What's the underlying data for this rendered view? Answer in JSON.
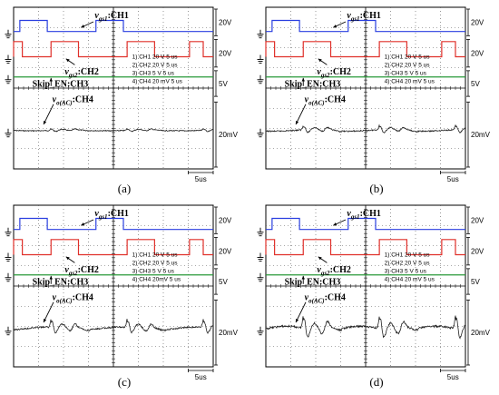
{
  "chart_data": [
    {
      "type": "line",
      "panel_label": "(a)",
      "labels": {
        "ch1": "v",
        "ch1_sub": "gs1",
        "ch1_tail": ":CH1",
        "ch2": "v",
        "ch2_sub": "gs2",
        "ch2_tail": ":CH2",
        "ch3": "Skip_EN:CH3",
        "ch4": "v",
        "ch4_sub": "o(AC)",
        "ch4_tail": ":CH4"
      },
      "scale_boxes": [
        "20V",
        "20V",
        "5V",
        "20mV",
        "5us"
      ],
      "settings": [
        "1) CH1  20  V    5 us",
        "2) CH2  20  V    5 us",
        "3) CH3  5  V    5 us",
        "4) CH4  20 mV   5 us"
      ],
      "series": [
        {
          "channel": "CH1",
          "color": "#2a3fe0",
          "volts_per_div": 20,
          "high": 0.55,
          "low": 0.0,
          "pulses": [
            [
              0.25,
              1.35
            ],
            [
              3.3,
              4.4
            ]
          ]
        },
        {
          "channel": "CH2",
          "color": "#e0302a",
          "volts_per_div": 20,
          "high": 0.75,
          "low": 0.0,
          "pulses": [
            [
              -0.2,
              0.35
            ],
            [
              1.5,
              2.6
            ],
            [
              4.55,
              5.65
            ],
            [
              7.05,
              7.6
            ]
          ]
        },
        {
          "channel": "CH3",
          "color": "#2a9a3a",
          "volts_per_div": 5,
          "level": 0.0
        },
        {
          "channel": "CH4",
          "color": "#222222",
          "volts_per_div_mV": 20,
          "ripple_amplitude_div": 0.12,
          "spike_period_div": 3.05
        }
      ]
    },
    {
      "type": "line",
      "panel_label": "(b)",
      "labels": {
        "ch1": "v",
        "ch1_sub": "gs1",
        "ch1_tail": ":CH1",
        "ch2": "v",
        "ch2_sub": "gs2",
        "ch2_tail": ":CH2",
        "ch3": "Skip_EN:CH3",
        "ch4": "v",
        "ch4_sub": "o(AC)",
        "ch4_tail": ":CH4"
      },
      "scale_boxes": [
        "20V",
        "20V",
        "5V",
        "20mV",
        "5us"
      ],
      "settings": [
        "1) CH1  20  V    5 us",
        "2) CH2  20  V    5 us",
        "3) CH3  5  V    5 us",
        "4) CH4  20 mV   5 us"
      ],
      "series": [
        {
          "channel": "CH1",
          "color": "#2a3fe0",
          "volts_per_div": 20,
          "high": 0.55,
          "low": 0.0,
          "pulses": [
            [
              0.25,
              1.35
            ],
            [
              3.3,
              4.4
            ]
          ]
        },
        {
          "channel": "CH2",
          "color": "#e0302a",
          "volts_per_div": 20,
          "high": 0.75,
          "low": 0.0,
          "pulses": [
            [
              -0.2,
              0.35
            ],
            [
              1.5,
              2.6
            ],
            [
              4.55,
              5.65
            ],
            [
              7.05,
              7.6
            ]
          ]
        },
        {
          "channel": "CH3",
          "color": "#2a9a3a",
          "volts_per_div": 5,
          "level": 0.0
        },
        {
          "channel": "CH4",
          "color": "#222222",
          "volts_per_div_mV": 20,
          "ripple_amplitude_div": 0.3,
          "spike_period_div": 3.05
        }
      ]
    },
    {
      "type": "line",
      "panel_label": "(c)",
      "labels": {
        "ch1": "v",
        "ch1_sub": "gs1",
        "ch1_tail": ":CH1",
        "ch2": "v",
        "ch2_sub": "gs2",
        "ch2_tail": ":CH2",
        "ch3": "Skip_EN:CH3",
        "ch4": "v",
        "ch4_sub": "o(AC)",
        "ch4_tail": ":CH4"
      },
      "scale_boxes": [
        "20V",
        "20V",
        "5V",
        "20mV",
        "5us"
      ],
      "settings": [
        "1) CH1  20  V    5 us",
        "2) CH2  20  V    5 us",
        "3) CH3  5  V    5 us",
        "4) CH4  20mV   5 us"
      ],
      "series": [
        {
          "channel": "CH1",
          "color": "#2a3fe0",
          "volts_per_div": 20,
          "high": 0.55,
          "low": 0.0,
          "pulses": [
            [
              0.25,
              1.35
            ],
            [
              3.3,
              4.4
            ]
          ]
        },
        {
          "channel": "CH2",
          "color": "#e0302a",
          "volts_per_div": 20,
          "high": 0.75,
          "low": 0.0,
          "pulses": [
            [
              -0.2,
              0.35
            ],
            [
              1.5,
              2.6
            ],
            [
              4.55,
              5.65
            ],
            [
              7.05,
              7.6
            ]
          ]
        },
        {
          "channel": "CH3",
          "color": "#2a9a3a",
          "volts_per_div": 5,
          "level": 0.0
        },
        {
          "channel": "CH4",
          "color": "#222222",
          "volts_per_div_mV": 20,
          "ripple_amplitude_div": 0.55,
          "spike_period_div": 3.05
        }
      ]
    },
    {
      "type": "line",
      "panel_label": "(d)",
      "labels": {
        "ch1": "v",
        "ch1_sub": "gs1",
        "ch1_tail": ":CH1",
        "ch2": "v",
        "ch2_sub": "gs2",
        "ch2_tail": ":CH2",
        "ch3": "Skip_EN:CH3",
        "ch4": "v",
        "ch4_sub": "o(AC)",
        "ch4_tail": ":CH4"
      },
      "scale_boxes": [
        "20V",
        "20V",
        "5V",
        "20mV",
        "5us"
      ],
      "settings": [
        "1) CH1  20  V    5 us",
        "2) CH2  20  V    5 us",
        "3) CH3  5  V    5 us",
        "4) CH4  20 mV   5 us"
      ],
      "series": [
        {
          "channel": "CH1",
          "color": "#2a3fe0",
          "volts_per_div": 20,
          "high": 0.55,
          "low": 0.0,
          "pulses": [
            [
              0.25,
              1.35
            ],
            [
              3.3,
              4.4
            ]
          ]
        },
        {
          "channel": "CH2",
          "color": "#e0302a",
          "volts_per_div": 20,
          "high": 0.75,
          "low": 0.0,
          "pulses": [
            [
              -0.2,
              0.35
            ],
            [
              1.5,
              2.6
            ],
            [
              4.55,
              5.65
            ],
            [
              7.05,
              7.6
            ]
          ]
        },
        {
          "channel": "CH3",
          "color": "#2a9a3a",
          "volts_per_div": 5,
          "level": 0.0
        },
        {
          "channel": "CH4",
          "color": "#222222",
          "volts_per_div_mV": 20,
          "ripple_amplitude_div": 0.9,
          "spike_period_div": 3.05
        }
      ]
    }
  ]
}
